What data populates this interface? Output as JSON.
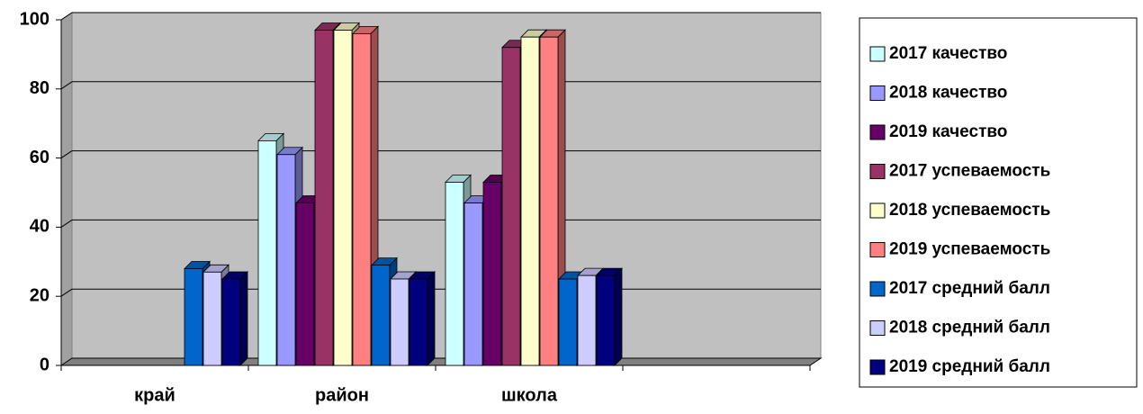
{
  "chart_data": {
    "type": "bar3d",
    "categories": [
      "край",
      "район",
      "школа",
      null
    ],
    "series": [
      {
        "name": "2017 качество",
        "color": "#ccffff",
        "values": [
          null,
          65,
          53,
          null
        ]
      },
      {
        "name": "2018 качество",
        "color": "#9999ff",
        "values": [
          null,
          61,
          47,
          null
        ]
      },
      {
        "name": "2019 качество",
        "color": "#660066",
        "values": [
          null,
          47,
          53,
          null
        ]
      },
      {
        "name": "2017 успеваемость",
        "color": "#993366",
        "values": [
          null,
          97,
          92,
          null
        ]
      },
      {
        "name": "2018 успеваемость",
        "color": "#ffffcc",
        "values": [
          null,
          97,
          95,
          null
        ]
      },
      {
        "name": "2019 успеваемость",
        "color": "#ff8080",
        "values": [
          null,
          96,
          95,
          null
        ]
      },
      {
        "name": "2017 средний балл",
        "color": "#0066cc",
        "values": [
          28,
          29,
          25,
          null
        ]
      },
      {
        "name": "2018 средний балл",
        "color": "#ccccff",
        "values": [
          27,
          25,
          26,
          null
        ]
      },
      {
        "name": "2019 средний балл",
        "color": "#000080",
        "values": [
          25,
          25,
          26,
          null
        ]
      }
    ],
    "ylim": [
      0,
      100
    ],
    "yticks": [
      0,
      20,
      40,
      60,
      80,
      100
    ],
    "grid": true,
    "legend": "right"
  }
}
